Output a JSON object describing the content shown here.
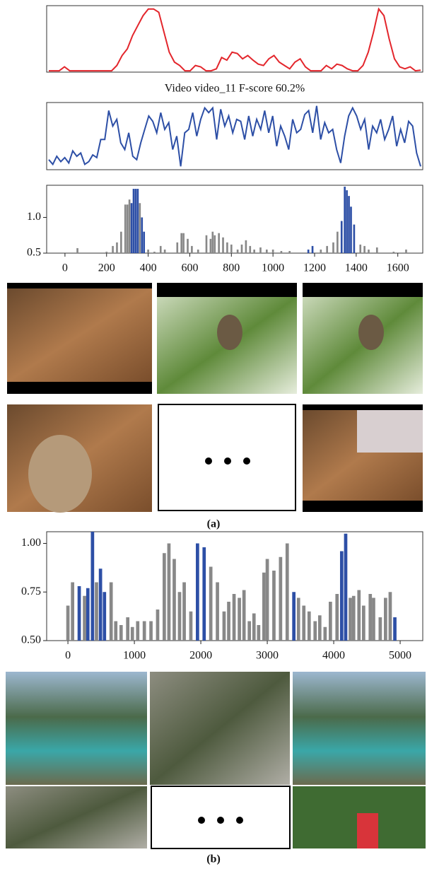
{
  "chart_data": [
    {
      "type": "line",
      "color": "#e3262c",
      "ylim": [
        0,
        1
      ],
      "values": [
        0.02,
        0.02,
        0.02,
        0.08,
        0.02,
        0.02,
        0.02,
        0.02,
        0.02,
        0.02,
        0.02,
        0.02,
        0.02,
        0.1,
        0.25,
        0.35,
        0.55,
        0.7,
        0.85,
        0.95,
        0.95,
        0.9,
        0.6,
        0.3,
        0.15,
        0.1,
        0.02,
        0.02,
        0.1,
        0.08,
        0.02,
        0.02,
        0.05,
        0.22,
        0.18,
        0.3,
        0.28,
        0.2,
        0.25,
        0.18,
        0.12,
        0.1,
        0.2,
        0.25,
        0.15,
        0.1,
        0.05,
        0.15,
        0.2,
        0.08,
        0.02,
        0.02,
        0.02,
        0.1,
        0.05,
        0.12,
        0.1,
        0.05,
        0.02,
        0.02,
        0.1,
        0.3,
        0.6,
        0.95,
        0.85,
        0.5,
        0.2,
        0.08,
        0.05,
        0.08,
        0.02,
        0.03
      ]
    },
    {
      "type": "line",
      "title": "Video video_11 F-score 60.2%",
      "color": "#2d4fa6",
      "ylim": [
        0,
        1
      ],
      "values": [
        0.15,
        0.08,
        0.2,
        0.12,
        0.18,
        0.1,
        0.28,
        0.2,
        0.25,
        0.08,
        0.12,
        0.22,
        0.18,
        0.45,
        0.45,
        0.88,
        0.65,
        0.75,
        0.4,
        0.3,
        0.55,
        0.2,
        0.15,
        0.4,
        0.6,
        0.8,
        0.72,
        0.55,
        0.85,
        0.6,
        0.7,
        0.3,
        0.5,
        0.05,
        0.55,
        0.6,
        0.85,
        0.5,
        0.75,
        0.92,
        0.85,
        0.92,
        0.45,
        0.9,
        0.65,
        0.8,
        0.55,
        0.75,
        0.72,
        0.45,
        0.8,
        0.5,
        0.75,
        0.6,
        0.88,
        0.55,
        0.8,
        0.35,
        0.65,
        0.5,
        0.3,
        0.75,
        0.55,
        0.6,
        0.82,
        0.88,
        0.55,
        0.95,
        0.45,
        0.7,
        0.55,
        0.6,
        0.3,
        0.1,
        0.5,
        0.8,
        0.92,
        0.8,
        0.6,
        0.75,
        0.3,
        0.65,
        0.55,
        0.75,
        0.45,
        0.6,
        0.8,
        0.35,
        0.6,
        0.4,
        0.72,
        0.65,
        0.25,
        0.05
      ]
    },
    {
      "type": "bar",
      "xlim": [
        -88,
        1720
      ],
      "ylim": [
        0.5,
        1.45
      ],
      "bar_width": 9,
      "xticks": [
        0,
        200,
        400,
        600,
        800,
        1000,
        1200,
        1400,
        1600
      ],
      "yticks": [
        0.5,
        {
          "value": 1,
          "label": "1.0"
        }
      ],
      "x": [
        60,
        200,
        230,
        250,
        270,
        290,
        300,
        310,
        320,
        330,
        340,
        350,
        360,
        370,
        380,
        400,
        430,
        460,
        480,
        540,
        560,
        570,
        590,
        610,
        640,
        680,
        700,
        710,
        720,
        740,
        760,
        780,
        800,
        830,
        850,
        870,
        890,
        910,
        940,
        970,
        1000,
        1040,
        1080,
        1170,
        1190,
        1230,
        1260,
        1290,
        1310,
        1330,
        1345,
        1355,
        1365,
        1375,
        1390,
        1420,
        1440,
        1460,
        1500,
        1580,
        1640
      ],
      "values": [
        0.57,
        0.52,
        0.6,
        0.65,
        0.8,
        1.18,
        1.18,
        1.25,
        1.2,
        1.4,
        1.4,
        1.4,
        1.2,
        1.0,
        0.8,
        0.55,
        0.52,
        0.6,
        0.55,
        0.65,
        0.78,
        0.78,
        0.7,
        0.6,
        0.55,
        0.75,
        0.7,
        0.8,
        0.75,
        0.78,
        0.72,
        0.65,
        0.62,
        0.55,
        0.62,
        0.68,
        0.6,
        0.55,
        0.58,
        0.55,
        0.55,
        0.53,
        0.53,
        0.55,
        0.6,
        0.55,
        0.6,
        0.65,
        0.8,
        0.95,
        1.43,
        1.38,
        1.3,
        1.15,
        0.9,
        0.62,
        0.6,
        0.55,
        0.58,
        0.52,
        0.55
      ],
      "colors": [
        "#888888",
        "#888888",
        "#888888",
        "#888888",
        "#888888",
        "#888888",
        "#888888",
        "#888888",
        "#2d4fa6",
        "#2d4fa6",
        "#2d4fa6",
        "#2d4fa6",
        "#888888",
        "#2d4fa6",
        "#2d4fa6",
        "#888888",
        "#888888",
        "#888888",
        "#888888",
        "#888888",
        "#888888",
        "#888888",
        "#888888",
        "#888888",
        "#888888",
        "#888888",
        "#888888",
        "#888888",
        "#888888",
        "#888888",
        "#888888",
        "#888888",
        "#888888",
        "#888888",
        "#888888",
        "#888888",
        "#888888",
        "#888888",
        "#888888",
        "#888888",
        "#888888",
        "#888888",
        "#888888",
        "#2d4fa6",
        "#2d4fa6",
        "#888888",
        "#888888",
        "#888888",
        "#888888",
        "#2d4fa6",
        "#2d4fa6",
        "#2d4fa6",
        "#2d4fa6",
        "#2d4fa6",
        "#2d4fa6",
        "#888888",
        "#888888",
        "#888888",
        "#888888",
        "#888888",
        "#888888"
      ]
    },
    {
      "type": "bar",
      "xlim": [
        -320,
        5340
      ],
      "ylim": [
        0.5,
        1.06
      ],
      "bar_width": 50,
      "xticks": [
        0,
        1000,
        2000,
        3000,
        4000,
        5000
      ],
      "yticks": [
        {
          "value": 0.5,
          "label": "0.50"
        },
        0.75,
        {
          "value": 1,
          "label": "1.00"
        }
      ],
      "x": [
        0,
        70,
        170,
        250,
        300,
        370,
        430,
        490,
        550,
        650,
        720,
        800,
        900,
        970,
        1050,
        1150,
        1250,
        1350,
        1450,
        1520,
        1600,
        1680,
        1750,
        1850,
        1950,
        2050,
        2150,
        2250,
        2350,
        2420,
        2500,
        2580,
        2650,
        2730,
        2800,
        2870,
        2950,
        3000,
        3100,
        3200,
        3300,
        3400,
        3470,
        3550,
        3630,
        3720,
        3790,
        3870,
        3950,
        4050,
        4120,
        4180,
        4250,
        4300,
        4380,
        4450,
        4550,
        4600,
        4700,
        4780,
        4850,
        4920
      ],
      "values": [
        0.68,
        0.8,
        0.78,
        0.73,
        0.77,
        1.06,
        0.8,
        0.87,
        0.75,
        0.8,
        0.6,
        0.58,
        0.62,
        0.57,
        0.6,
        0.6,
        0.6,
        0.66,
        0.95,
        1.0,
        0.92,
        0.75,
        0.8,
        0.65,
        1.0,
        0.98,
        0.88,
        0.8,
        0.65,
        0.7,
        0.74,
        0.72,
        0.76,
        0.6,
        0.64,
        0.58,
        0.85,
        0.92,
        0.86,
        0.93,
        1.0,
        0.75,
        0.72,
        0.68,
        0.65,
        0.6,
        0.63,
        0.57,
        0.7,
        0.74,
        0.96,
        1.05,
        0.72,
        0.73,
        0.76,
        0.68,
        0.74,
        0.72,
        0.62,
        0.72,
        0.75,
        0.62
      ],
      "colors": [
        "#888888",
        "#888888",
        "#2d4fa6",
        "#888888",
        "#2d4fa6",
        "#2d4fa6",
        "#888888",
        "#2d4fa6",
        "#2d4fa6",
        "#888888",
        "#888888",
        "#888888",
        "#888888",
        "#888888",
        "#888888",
        "#888888",
        "#888888",
        "#888888",
        "#888888",
        "#888888",
        "#888888",
        "#888888",
        "#888888",
        "#888888",
        "#2d4fa6",
        "#2d4fa6",
        "#888888",
        "#888888",
        "#888888",
        "#888888",
        "#888888",
        "#888888",
        "#888888",
        "#888888",
        "#888888",
        "#888888",
        "#888888",
        "#888888",
        "#888888",
        "#888888",
        "#888888",
        "#2d4fa6",
        "#888888",
        "#888888",
        "#888888",
        "#888888",
        "#888888",
        "#888888",
        "#888888",
        "#888888",
        "#2d4fa6",
        "#2d4fa6",
        "#888888",
        "#888888",
        "#888888",
        "#888888",
        "#888888",
        "#888888",
        "#888888",
        "#888888",
        "#888888",
        "#2d4fa6"
      ]
    }
  ],
  "labels": [
    "(a)",
    "(b)"
  ]
}
